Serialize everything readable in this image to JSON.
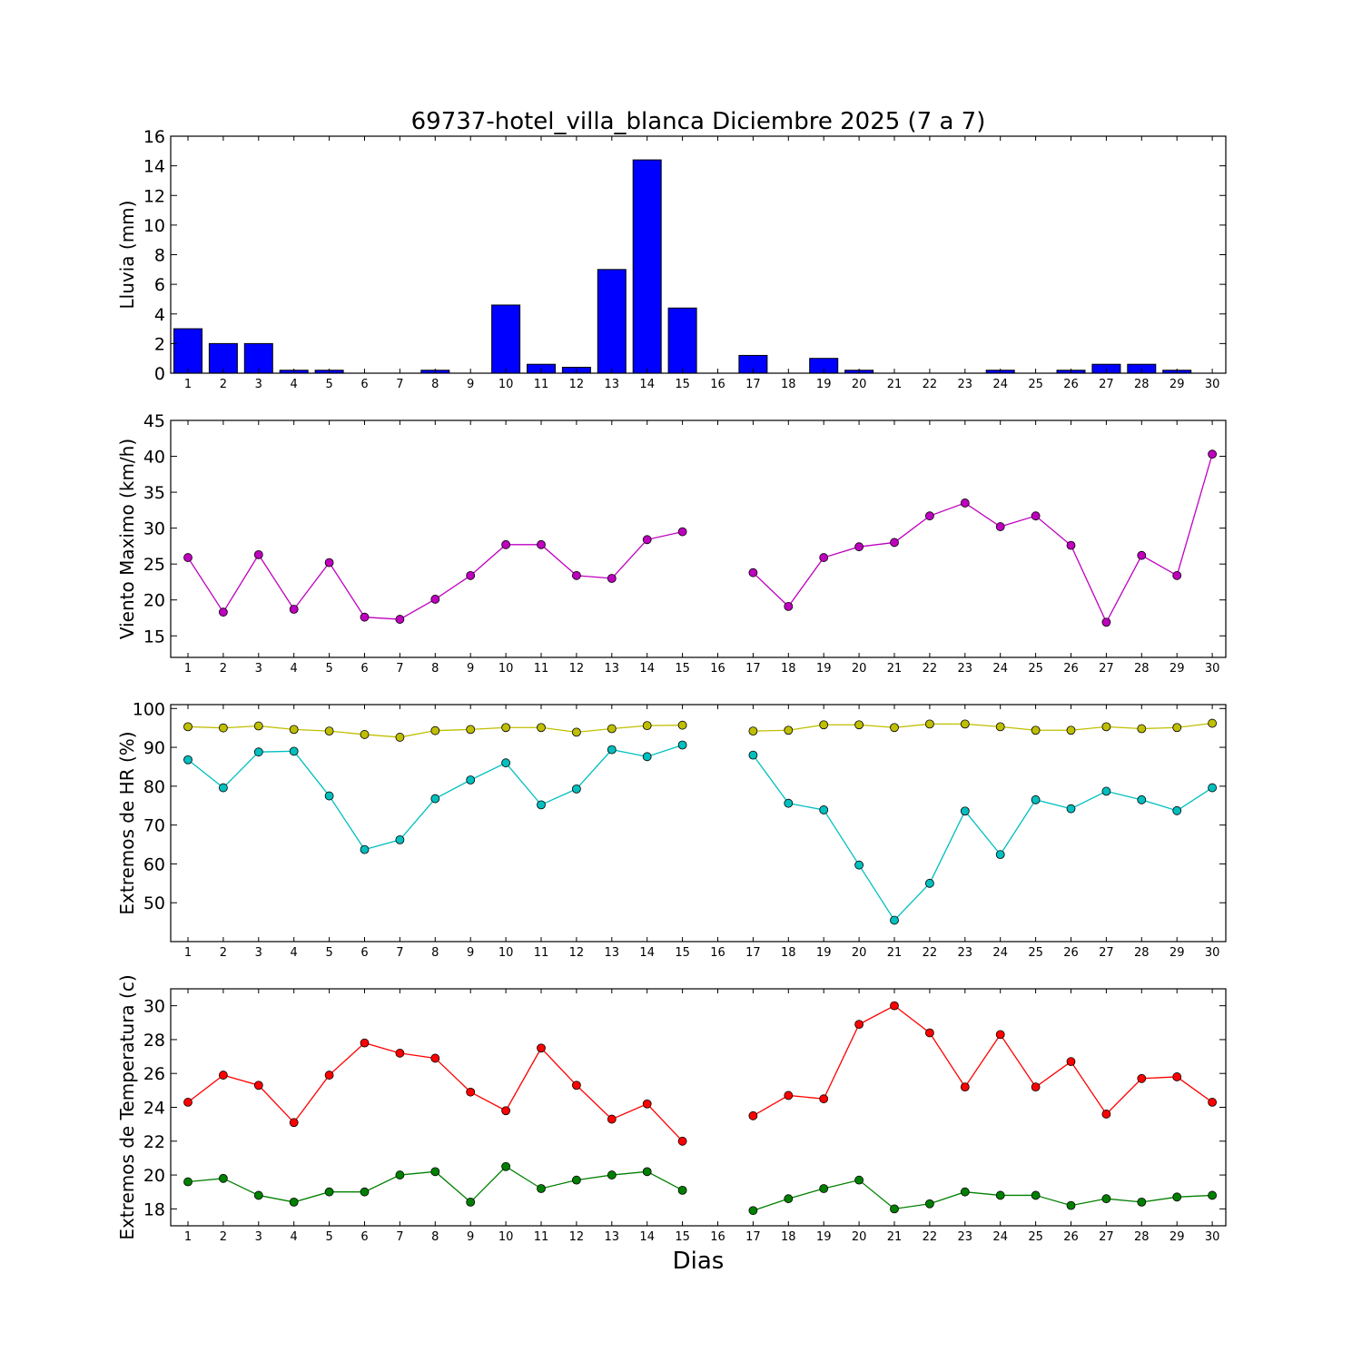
{
  "chart_data": {
    "title": "69737-hotel_villa_blanca Diciembre 2025  (7 a 7)",
    "xlabel": "Dias",
    "days": [
      1,
      2,
      3,
      4,
      5,
      6,
      7,
      8,
      9,
      10,
      11,
      12,
      13,
      14,
      15,
      16,
      17,
      18,
      19,
      20,
      21,
      22,
      23,
      24,
      25,
      26,
      27,
      28,
      29,
      30
    ],
    "panels": [
      {
        "type": "bar",
        "ylabel": "Lluvia (mm)",
        "ylim": [
          0,
          16
        ],
        "yticks": [
          0,
          2,
          4,
          6,
          8,
          10,
          12,
          14,
          16
        ],
        "series": [
          {
            "color": "#0000ff",
            "values": [
              3.0,
              2.0,
              2.0,
              0.2,
              0.2,
              0,
              0,
              0.2,
              0,
              4.6,
              0.6,
              0.4,
              7.0,
              14.4,
              4.4,
              0,
              1.2,
              0,
              1.0,
              0.2,
              0,
              0,
              0,
              0.2,
              0,
              0.2,
              0.6,
              0.6,
              0.2,
              0
            ]
          }
        ]
      },
      {
        "type": "line",
        "ylabel": "Viento Maximo (km/h)",
        "ylim": [
          12,
          45
        ],
        "yticks": [
          15,
          20,
          25,
          30,
          35,
          40,
          45
        ],
        "series": [
          {
            "color": "#bf00bf",
            "values": [
              25.9,
              18.3,
              26.3,
              18.7,
              25.2,
              17.6,
              17.3,
              20.1,
              23.4,
              27.7,
              27.7,
              23.4,
              23.0,
              28.4,
              29.5,
              null,
              23.8,
              19.1,
              25.9,
              27.4,
              28.0,
              31.7,
              33.5,
              30.2,
              31.7,
              27.6,
              16.9,
              26.2,
              23.4,
              40.3
            ]
          }
        ]
      },
      {
        "type": "line",
        "ylabel": "Extremos de HR (%)",
        "ylim": [
          40,
          101
        ],
        "yticks": [
          50,
          60,
          70,
          80,
          90,
          100
        ],
        "series": [
          {
            "color": "#bfbf00",
            "values": [
              95.3,
              95.0,
              95.5,
              94.6,
              94.2,
              93.3,
              92.6,
              94.3,
              94.6,
              95.1,
              95.1,
              93.9,
              94.8,
              95.6,
              95.7,
              null,
              94.2,
              94.4,
              95.8,
              95.8,
              95.1,
              96.0,
              96.0,
              95.3,
              94.4,
              94.4,
              95.3,
              94.8,
              95.1,
              96.2
            ]
          },
          {
            "color": "#00bfbf",
            "values": [
              86.8,
              79.6,
              88.8,
              89.0,
              77.5,
              63.7,
              66.2,
              76.8,
              81.6,
              86.0,
              75.2,
              79.3,
              89.4,
              87.6,
              90.6,
              null,
              88.0,
              75.6,
              73.9,
              59.7,
              45.5,
              55.0,
              73.6,
              62.4,
              76.5,
              74.2,
              78.7,
              76.5,
              73.7,
              79.6
            ]
          }
        ]
      },
      {
        "type": "line",
        "ylabel": "Extremos de Temperatura (c)",
        "ylim": [
          17,
          31
        ],
        "yticks": [
          18,
          20,
          22,
          24,
          26,
          28,
          30
        ],
        "series": [
          {
            "color": "#ff0000",
            "values": [
              24.3,
              25.9,
              25.3,
              23.1,
              25.9,
              27.8,
              27.2,
              26.9,
              24.9,
              23.8,
              27.5,
              25.3,
              23.3,
              24.2,
              22.0,
              null,
              23.5,
              24.7,
              24.5,
              28.9,
              30.0,
              28.4,
              25.2,
              28.3,
              25.2,
              26.7,
              23.6,
              25.7,
              25.8,
              24.3
            ]
          },
          {
            "color": "#008000",
            "values": [
              19.6,
              19.8,
              18.8,
              18.4,
              19.0,
              19.0,
              20.0,
              20.2,
              18.4,
              20.5,
              19.2,
              19.7,
              20.0,
              20.2,
              19.1,
              null,
              17.9,
              18.6,
              19.2,
              19.7,
              18.0,
              18.3,
              19.0,
              18.8,
              18.8,
              18.2,
              18.6,
              18.4,
              18.7,
              18.8
            ]
          }
        ]
      }
    ]
  }
}
